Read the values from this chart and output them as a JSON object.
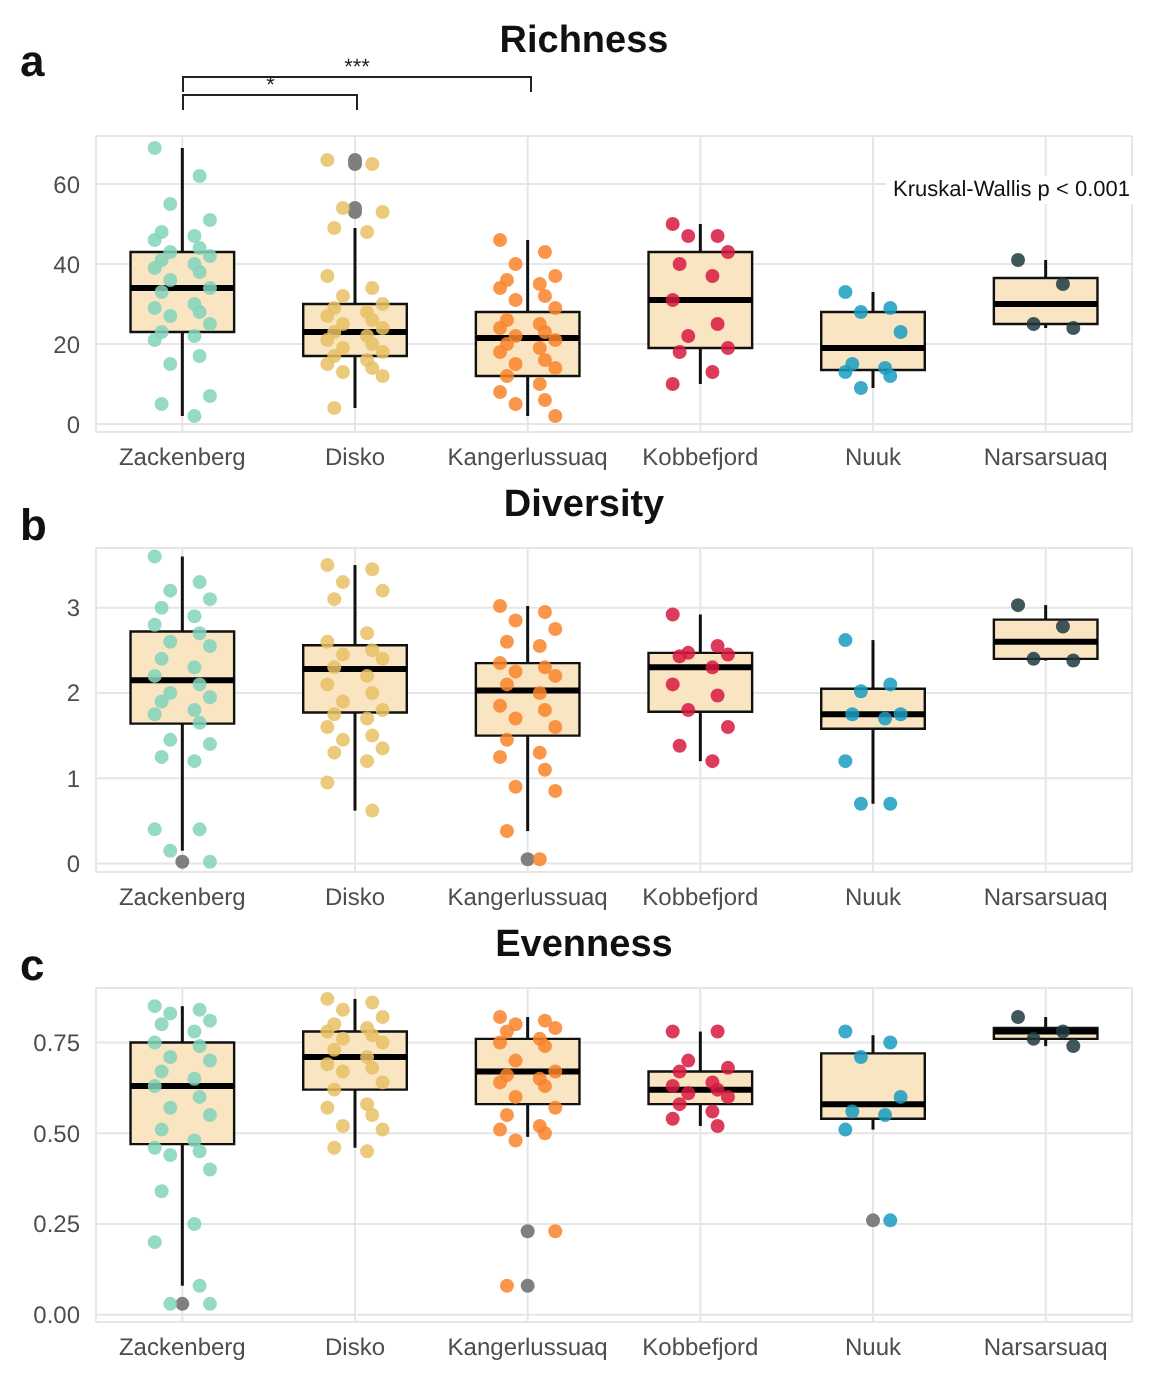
{
  "chart_data": [
    {
      "type": "box",
      "title": "Richness",
      "categories": [
        "Zackenberg",
        "Disko",
        "Kangerlussuaq",
        "Kobbefjord",
        "Nuuk",
        "Narsarsuaq"
      ],
      "color": "#f9e5c2",
      "grid": true,
      "ylim": [
        -2,
        72
      ],
      "yticks": [
        0,
        20,
        40,
        60
      ],
      "annotations": [
        "a",
        "***",
        "*",
        "Kruskal-Wallis p < 0.001"
      ],
      "boxes": [
        {
          "low": 2,
          "q1": 23,
          "median": 34,
          "q3": 43,
          "high": 69
        },
        {
          "low": 4,
          "q1": 17,
          "median": 23,
          "q3": 30,
          "high": 49,
          "outliers": [
            53,
            54,
            65,
            66
          ]
        },
        {
          "low": 2,
          "q1": 12,
          "median": 21.5,
          "q3": 28,
          "high": 46
        },
        {
          "low": 10,
          "q1": 19,
          "median": 31,
          "q3": 43,
          "high": 50
        },
        {
          "low": 9,
          "q1": 13.5,
          "median": 19,
          "q3": 28,
          "high": 33
        },
        {
          "low": 24,
          "q1": 25,
          "median": 30,
          "q3": 36.5,
          "high": 41
        }
      ],
      "series": [
        {
          "type": "scatter",
          "color": "#82d4bb",
          "x": [
            "Zackenberg",
            "Zackenberg",
            "Zackenberg",
            "Zackenberg",
            "Zackenberg",
            "Zackenberg",
            "Zackenberg",
            "Zackenberg",
            "Zackenberg",
            "Zackenberg",
            "Zackenberg",
            "Zackenberg",
            "Zackenberg",
            "Zackenberg",
            "Zackenberg",
            "Zackenberg",
            "Zackenberg",
            "Zackenberg",
            "Zackenberg",
            "Zackenberg",
            "Zackenberg",
            "Zackenberg",
            "Zackenberg",
            "Zackenberg",
            "Zackenberg",
            "Zackenberg",
            "Zackenberg",
            "Zackenberg",
            "Zackenberg",
            "Zackenberg"
          ],
          "values": [
            69,
            62,
            55,
            51,
            48,
            47,
            46,
            44,
            43,
            42,
            41,
            40,
            39,
            38,
            36,
            34,
            33,
            30,
            29,
            28,
            27,
            25,
            23,
            22,
            21,
            17,
            15,
            7,
            5,
            2
          ]
        },
        {
          "type": "scatter",
          "color": "#e8c165",
          "x": [
            "Disko",
            "Disko",
            "Disko",
            "Disko",
            "Disko",
            "Disko",
            "Disko",
            "Disko",
            "Disko",
            "Disko",
            "Disko",
            "Disko",
            "Disko",
            "Disko",
            "Disko",
            "Disko",
            "Disko",
            "Disko",
            "Disko",
            "Disko",
            "Disko",
            "Disko",
            "Disko",
            "Disko",
            "Disko",
            "Disko",
            "Disko",
            "Disko",
            "Disko"
          ],
          "values": [
            66,
            65,
            54,
            53,
            49,
            48,
            37,
            34,
            32,
            30,
            29,
            28,
            27,
            26,
            25,
            24,
            23,
            22,
            21,
            20,
            19,
            18,
            17,
            16,
            15,
            14,
            13,
            12,
            4
          ]
        },
        {
          "type": "scatter",
          "color": "#f9842a",
          "x": [
            "Kangerlussuaq",
            "Kangerlussuaq",
            "Kangerlussuaq",
            "Kangerlussuaq",
            "Kangerlussuaq",
            "Kangerlussuaq",
            "Kangerlussuaq",
            "Kangerlussuaq",
            "Kangerlussuaq",
            "Kangerlussuaq",
            "Kangerlussuaq",
            "Kangerlussuaq",
            "Kangerlussuaq",
            "Kangerlussuaq",
            "Kangerlussuaq",
            "Kangerlussuaq",
            "Kangerlussuaq",
            "Kangerlussuaq",
            "Kangerlussuaq",
            "Kangerlussuaq",
            "Kangerlussuaq",
            "Kangerlussuaq",
            "Kangerlussuaq",
            "Kangerlussuaq",
            "Kangerlussuaq",
            "Kangerlussuaq",
            "Kangerlussuaq",
            "Kangerlussuaq"
          ],
          "values": [
            46,
            43,
            40,
            37,
            36,
            35,
            34,
            32,
            31,
            29,
            26,
            25,
            24,
            23,
            22,
            21,
            20,
            19,
            18,
            16,
            15,
            14,
            12,
            10,
            8,
            6,
            5,
            2
          ]
        },
        {
          "type": "scatter",
          "color": "#d7193f",
          "x": [
            "Kobbefjord",
            "Kobbefjord",
            "Kobbefjord",
            "Kobbefjord",
            "Kobbefjord",
            "Kobbefjord",
            "Kobbefjord",
            "Kobbefjord",
            "Kobbefjord",
            "Kobbefjord",
            "Kobbefjord",
            "Kobbefjord",
            "Kobbefjord"
          ],
          "values": [
            50,
            47,
            47,
            43,
            40,
            37,
            31,
            25,
            22,
            19,
            18,
            13,
            10
          ]
        },
        {
          "type": "scatter",
          "color": "#1a9bc0",
          "x": [
            "Nuuk",
            "Nuuk",
            "Nuuk",
            "Nuuk",
            "Nuuk",
            "Nuuk",
            "Nuuk",
            "Nuuk",
            "Nuuk"
          ],
          "values": [
            33,
            29,
            28,
            23,
            15,
            14,
            13,
            12,
            9
          ]
        },
        {
          "type": "scatter",
          "color": "#1e3a40",
          "x": [
            "Narsarsuaq",
            "Narsarsuaq",
            "Narsarsuaq",
            "Narsarsuaq"
          ],
          "values": [
            41,
            35,
            25,
            24
          ]
        }
      ]
    },
    {
      "type": "box",
      "title": "Diversity",
      "categories": [
        "Zackenberg",
        "Disko",
        "Kangerlussuaq",
        "Kobbefjord",
        "Nuuk",
        "Narsarsuaq"
      ],
      "color": "#f9e5c2",
      "grid": true,
      "ylim": [
        -0.1,
        3.7
      ],
      "yticks": [
        0,
        1,
        2,
        3
      ],
      "annotations": [
        "b"
      ],
      "boxes": [
        {
          "low": 0.15,
          "q1": 1.64,
          "median": 2.15,
          "q3": 2.72,
          "high": 3.6,
          "outliers": [
            0.02
          ]
        },
        {
          "low": 0.62,
          "q1": 1.77,
          "median": 2.28,
          "q3": 2.56,
          "high": 3.5
        },
        {
          "low": 0.38,
          "q1": 1.5,
          "median": 2.03,
          "q3": 2.35,
          "high": 3.02,
          "outliers": [
            0.05
          ]
        },
        {
          "low": 1.2,
          "q1": 1.78,
          "median": 2.3,
          "q3": 2.47,
          "high": 2.92
        },
        {
          "low": 0.7,
          "q1": 1.58,
          "median": 1.75,
          "q3": 2.05,
          "high": 2.62
        },
        {
          "low": 2.38,
          "q1": 2.4,
          "median": 2.6,
          "q3": 2.86,
          "high": 3.03
        }
      ],
      "series": [
        {
          "type": "scatter",
          "color": "#82d4bb",
          "x": [
            "Zackenberg",
            "Zackenberg",
            "Zackenberg",
            "Zackenberg",
            "Zackenberg",
            "Zackenberg",
            "Zackenberg",
            "Zackenberg",
            "Zackenberg",
            "Zackenberg",
            "Zackenberg",
            "Zackenberg",
            "Zackenberg",
            "Zackenberg",
            "Zackenberg",
            "Zackenberg",
            "Zackenberg",
            "Zackenberg",
            "Zackenberg",
            "Zackenberg",
            "Zackenberg",
            "Zackenberg",
            "Zackenberg",
            "Zackenberg",
            "Zackenberg",
            "Zackenberg",
            "Zackenberg",
            "Zackenberg"
          ],
          "values": [
            3.6,
            3.3,
            3.2,
            3.1,
            3.0,
            2.9,
            2.8,
            2.7,
            2.6,
            2.55,
            2.4,
            2.3,
            2.2,
            2.1,
            2.0,
            1.95,
            1.9,
            1.8,
            1.75,
            1.65,
            1.45,
            1.4,
            1.25,
            1.2,
            0.4,
            0.4,
            0.15,
            0.02
          ]
        },
        {
          "type": "scatter",
          "color": "#e8c165",
          "x": [
            "Disko",
            "Disko",
            "Disko",
            "Disko",
            "Disko",
            "Disko",
            "Disko",
            "Disko",
            "Disko",
            "Disko",
            "Disko",
            "Disko",
            "Disko",
            "Disko",
            "Disko",
            "Disko",
            "Disko",
            "Disko",
            "Disko",
            "Disko",
            "Disko",
            "Disko",
            "Disko",
            "Disko",
            "Disko",
            "Disko"
          ],
          "values": [
            3.5,
            3.45,
            3.3,
            3.2,
            3.1,
            2.7,
            2.6,
            2.5,
            2.45,
            2.4,
            2.3,
            2.2,
            2.1,
            2.0,
            1.9,
            1.8,
            1.75,
            1.7,
            1.6,
            1.5,
            1.45,
            1.35,
            1.3,
            1.2,
            0.95,
            0.62
          ]
        },
        {
          "type": "scatter",
          "color": "#f9842a",
          "x": [
            "Kangerlussuaq",
            "Kangerlussuaq",
            "Kangerlussuaq",
            "Kangerlussuaq",
            "Kangerlussuaq",
            "Kangerlussuaq",
            "Kangerlussuaq",
            "Kangerlussuaq",
            "Kangerlussuaq",
            "Kangerlussuaq",
            "Kangerlussuaq",
            "Kangerlussuaq",
            "Kangerlussuaq",
            "Kangerlussuaq",
            "Kangerlussuaq",
            "Kangerlussuaq",
            "Kangerlussuaq",
            "Kangerlussuaq",
            "Kangerlussuaq",
            "Kangerlussuaq",
            "Kangerlussuaq",
            "Kangerlussuaq",
            "Kangerlussuaq",
            "Kangerlussuaq"
          ],
          "values": [
            3.02,
            2.95,
            2.85,
            2.75,
            2.6,
            2.55,
            2.35,
            2.3,
            2.25,
            2.2,
            2.1,
            2.0,
            1.85,
            1.8,
            1.7,
            1.6,
            1.45,
            1.3,
            1.25,
            1.1,
            0.9,
            0.85,
            0.38,
            0.05
          ]
        },
        {
          "type": "scatter",
          "color": "#d7193f",
          "x": [
            "Kobbefjord",
            "Kobbefjord",
            "Kobbefjord",
            "Kobbefjord",
            "Kobbefjord",
            "Kobbefjord",
            "Kobbefjord",
            "Kobbefjord",
            "Kobbefjord",
            "Kobbefjord",
            "Kobbefjord",
            "Kobbefjord"
          ],
          "values": [
            2.92,
            2.55,
            2.47,
            2.45,
            2.43,
            2.3,
            2.1,
            1.97,
            1.8,
            1.6,
            1.38,
            1.2
          ]
        },
        {
          "type": "scatter",
          "color": "#1a9bc0",
          "x": [
            "Nuuk",
            "Nuuk",
            "Nuuk",
            "Nuuk",
            "Nuuk",
            "Nuuk",
            "Nuuk",
            "Nuuk",
            "Nuuk"
          ],
          "values": [
            2.62,
            2.1,
            2.02,
            1.75,
            1.75,
            1.7,
            1.2,
            0.7,
            0.7
          ]
        },
        {
          "type": "scatter",
          "color": "#1e3a40",
          "x": [
            "Narsarsuaq",
            "Narsarsuaq",
            "Narsarsuaq",
            "Narsarsuaq"
          ],
          "values": [
            3.03,
            2.78,
            2.4,
            2.38
          ]
        }
      ]
    },
    {
      "type": "box",
      "title": "Evenness",
      "categories": [
        "Zackenberg",
        "Disko",
        "Kangerlussuaq",
        "Kobbefjord",
        "Nuuk",
        "Narsarsuaq"
      ],
      "color": "#f9e5c2",
      "grid": true,
      "ylim": [
        -0.02,
        0.9
      ],
      "yticks": [
        {
          "value": 0,
          "label": "0.00"
        },
        0.25,
        {
          "value": 0.5,
          "label": "0.50"
        },
        0.75
      ],
      "annotations": [
        "c"
      ],
      "boxes": [
        {
          "low": 0.08,
          "q1": 0.47,
          "median": 0.63,
          "q3": 0.75,
          "high": 0.85,
          "outliers": [
            0.03
          ]
        },
        {
          "low": 0.46,
          "q1": 0.62,
          "median": 0.71,
          "q3": 0.78,
          "high": 0.87
        },
        {
          "low": 0.49,
          "q1": 0.58,
          "median": 0.67,
          "q3": 0.76,
          "high": 0.82,
          "outliers": [
            0.23,
            0.08
          ]
        },
        {
          "low": 0.52,
          "q1": 0.58,
          "median": 0.62,
          "q3": 0.67,
          "high": 0.78
        },
        {
          "low": 0.51,
          "q1": 0.54,
          "median": 0.58,
          "q3": 0.72,
          "high": 0.77,
          "outliers": [
            0.26
          ]
        },
        {
          "low": 0.74,
          "q1": 0.76,
          "median": 0.78,
          "q3": 0.79,
          "high": 0.82
        }
      ],
      "series": [
        {
          "type": "scatter",
          "color": "#82d4bb",
          "x": [
            "Zackenberg",
            "Zackenberg",
            "Zackenberg",
            "Zackenberg",
            "Zackenberg",
            "Zackenberg",
            "Zackenberg",
            "Zackenberg",
            "Zackenberg",
            "Zackenberg",
            "Zackenberg",
            "Zackenberg",
            "Zackenberg",
            "Zackenberg",
            "Zackenberg",
            "Zackenberg",
            "Zackenberg",
            "Zackenberg",
            "Zackenberg",
            "Zackenberg",
            "Zackenberg",
            "Zackenberg",
            "Zackenberg",
            "Zackenberg",
            "Zackenberg",
            "Zackenberg",
            "Zackenberg",
            "Zackenberg"
          ],
          "values": [
            0.85,
            0.84,
            0.83,
            0.81,
            0.8,
            0.78,
            0.75,
            0.74,
            0.71,
            0.7,
            0.67,
            0.65,
            0.63,
            0.6,
            0.57,
            0.55,
            0.51,
            0.48,
            0.46,
            0.45,
            0.44,
            0.4,
            0.34,
            0.25,
            0.2,
            0.08,
            0.03,
            0.03
          ]
        },
        {
          "type": "scatter",
          "color": "#e8c165",
          "x": [
            "Disko",
            "Disko",
            "Disko",
            "Disko",
            "Disko",
            "Disko",
            "Disko",
            "Disko",
            "Disko",
            "Disko",
            "Disko",
            "Disko",
            "Disko",
            "Disko",
            "Disko",
            "Disko",
            "Disko",
            "Disko",
            "Disko",
            "Disko",
            "Disko",
            "Disko",
            "Disko",
            "Disko"
          ],
          "values": [
            0.87,
            0.86,
            0.84,
            0.82,
            0.8,
            0.79,
            0.78,
            0.77,
            0.76,
            0.75,
            0.73,
            0.71,
            0.69,
            0.68,
            0.67,
            0.64,
            0.62,
            0.58,
            0.57,
            0.55,
            0.52,
            0.51,
            0.46,
            0.45
          ]
        },
        {
          "type": "scatter",
          "color": "#f9842a",
          "x": [
            "Kangerlussuaq",
            "Kangerlussuaq",
            "Kangerlussuaq",
            "Kangerlussuaq",
            "Kangerlussuaq",
            "Kangerlussuaq",
            "Kangerlussuaq",
            "Kangerlussuaq",
            "Kangerlussuaq",
            "Kangerlussuaq",
            "Kangerlussuaq",
            "Kangerlussuaq",
            "Kangerlussuaq",
            "Kangerlussuaq",
            "Kangerlussuaq",
            "Kangerlussuaq",
            "Kangerlussuaq",
            "Kangerlussuaq",
            "Kangerlussuaq",
            "Kangerlussuaq",
            "Kangerlussuaq",
            "Kangerlussuaq",
            "Kangerlussuaq"
          ],
          "values": [
            0.82,
            0.81,
            0.8,
            0.79,
            0.78,
            0.76,
            0.75,
            0.74,
            0.7,
            0.67,
            0.66,
            0.65,
            0.64,
            0.63,
            0.6,
            0.57,
            0.55,
            0.52,
            0.51,
            0.5,
            0.48,
            0.23,
            0.08
          ]
        },
        {
          "type": "scatter",
          "color": "#d7193f",
          "x": [
            "Kobbefjord",
            "Kobbefjord",
            "Kobbefjord",
            "Kobbefjord",
            "Kobbefjord",
            "Kobbefjord",
            "Kobbefjord",
            "Kobbefjord",
            "Kobbefjord",
            "Kobbefjord",
            "Kobbefjord",
            "Kobbefjord",
            "Kobbefjord",
            "Kobbefjord"
          ],
          "values": [
            0.78,
            0.78,
            0.7,
            0.68,
            0.67,
            0.64,
            0.63,
            0.62,
            0.61,
            0.6,
            0.58,
            0.56,
            0.54,
            0.52
          ]
        },
        {
          "type": "scatter",
          "color": "#1a9bc0",
          "x": [
            "Nuuk",
            "Nuuk",
            "Nuuk",
            "Nuuk",
            "Nuuk",
            "Nuuk",
            "Nuuk",
            "Nuuk"
          ],
          "values": [
            0.78,
            0.75,
            0.71,
            0.6,
            0.56,
            0.55,
            0.51,
            0.26
          ]
        },
        {
          "type": "scatter",
          "color": "#1e3a40",
          "x": [
            "Narsarsuaq",
            "Narsarsuaq",
            "Narsarsuaq",
            "Narsarsuaq"
          ],
          "values": [
            0.82,
            0.78,
            0.76,
            0.74
          ]
        }
      ]
    }
  ]
}
